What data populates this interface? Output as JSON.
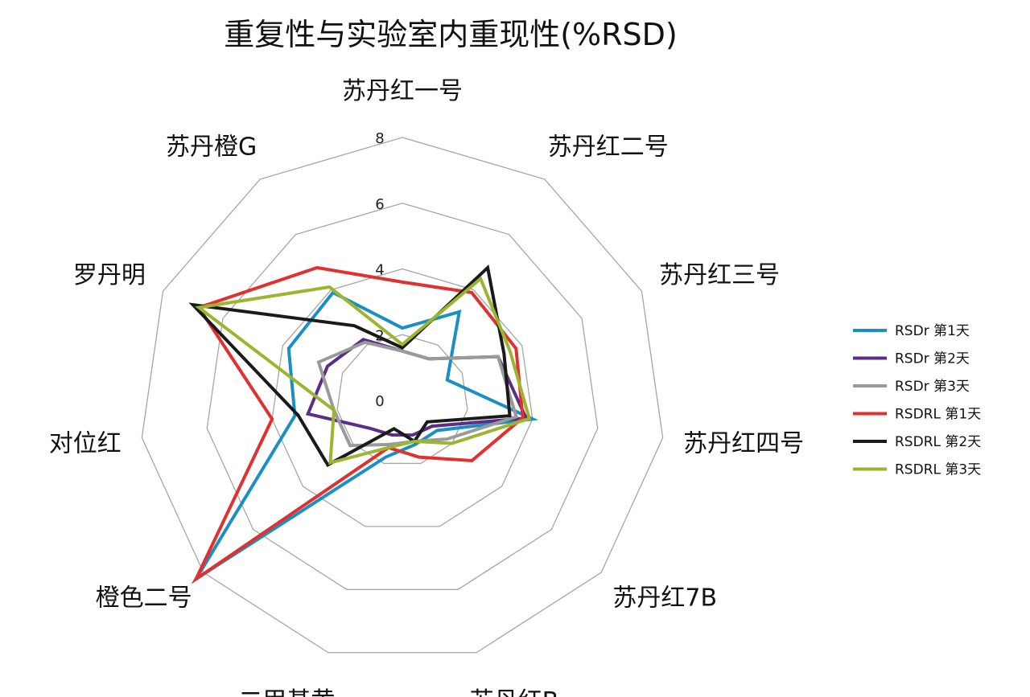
{
  "chart_data": {
    "type": "radar",
    "title": "重复性与实验室内重现性(%RSD)",
    "categories": [
      "苏丹红一号",
      "苏丹红二号",
      "苏丹红三号",
      "苏丹红四号",
      "苏丹红7B",
      "苏丹红B",
      "二甲基黄",
      "橙色二号",
      "对位红",
      "罗丹明",
      "苏丹橙G"
    ],
    "rlim": [
      0,
      8
    ],
    "ticks": [
      "0",
      "2",
      "4",
      "6",
      "8"
    ],
    "grid": true,
    "legend_position": "right",
    "series": [
      {
        "name": "RSDr 第1天",
        "color": "#1a8fc4",
        "values": [
          2.2,
          3.2,
          1.5,
          4.0,
          1.4,
          1.4,
          1.8,
          8.3,
          3.3,
          3.8,
          3.9
        ]
      },
      {
        "name": "RSDr 第2天",
        "color": "#5b2d86",
        "values": [
          1.5,
          1.5,
          3.2,
          3.8,
          1.2,
          1.1,
          1.1,
          1.3,
          2.9,
          2.5,
          2.2
        ]
      },
      {
        "name": "RSDr 第3天",
        "color": "#9a9a9a",
        "values": [
          1.5,
          1.5,
          3.2,
          3.5,
          1.8,
          1.3,
          1.4,
          2.1,
          2.1,
          2.8,
          2.1
        ]
      },
      {
        "name": "RSDRL 第1天",
        "color": "#e03030",
        "values": [
          3.6,
          3.9,
          3.8,
          3.7,
          2.8,
          1.8,
          1.5,
          8.3,
          4.0,
          6.8,
          4.8
        ]
      },
      {
        "name": "RSDRL 第2天",
        "color": "#1a1a1a",
        "values": [
          1.6,
          4.8,
          3.4,
          3.3,
          1.0,
          1.3,
          0.9,
          3.0,
          3.2,
          7.0,
          2.7
        ]
      },
      {
        "name": "RSDRL 第3天",
        "color": "#9cb531",
        "values": [
          1.7,
          4.4,
          3.6,
          3.9,
          2.0,
          1.3,
          1.5,
          2.9,
          2.1,
          6.8,
          4.1
        ]
      }
    ]
  }
}
